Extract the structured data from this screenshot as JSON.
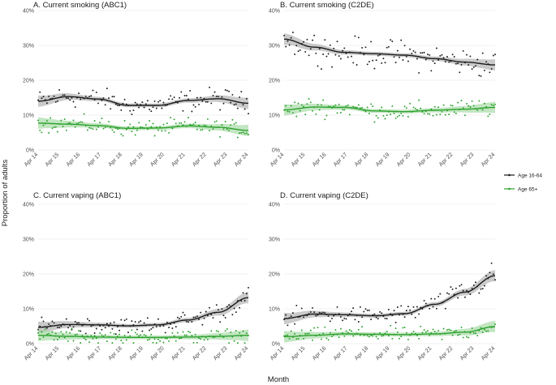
{
  "colors": {
    "age_16_64": "#1a1a1a",
    "age_65_plus": "#2ca02c",
    "ribbon_16_64": "#9e9e9e",
    "ribbon_65_plus": "#8fd18f",
    "grid": "#ececec"
  },
  "chart_data": {
    "type": "scatter",
    "xlabel": "Month",
    "ylabel": "Proportion of adults",
    "x_tick_labels": [
      "Apr 14",
      "Apr 15",
      "Apr 16",
      "Apr 17",
      "Apr 18",
      "Apr 19",
      "Apr 20",
      "Apr 21",
      "Apr 22",
      "Apr 23",
      "Apr 24"
    ],
    "y_tick_labels": [
      "0%",
      "10%",
      "20%",
      "30%",
      "40%"
    ],
    "ylim": [
      0,
      40
    ],
    "legend": {
      "position": "right",
      "entries": [
        "Age 16-64",
        "Age 65+"
      ]
    },
    "panels": [
      {
        "title": "A. Current smoking (ABC1)",
        "series": [
          {
            "name": "Age 16-64",
            "trend_knots": [
              14.0,
              15.3,
              14.6,
              12.8,
              12.8,
              14.2,
              14.7,
              13.4
            ]
          },
          {
            "name": "Age 65+",
            "trend_knots": [
              7.7,
              7.4,
              7.0,
              6.2,
              6.3,
              6.9,
              6.5,
              5.6
            ]
          }
        ]
      },
      {
        "title": "B. Current smoking (C2DE)",
        "series": [
          {
            "name": "Age 16-64",
            "trend_knots": [
              31.8,
              29.5,
              28.0,
              27.6,
              27.2,
              26.2,
              25.2,
              24.4
            ]
          },
          {
            "name": "Age 65+",
            "trend_knots": [
              11.5,
              12.3,
              12.2,
              11.2,
              11.0,
              11.4,
              11.7,
              12.2
            ]
          }
        ]
      },
      {
        "title": "C. Current vaping (ABC1)",
        "series": [
          {
            "name": "Age 16-64",
            "trend_knots": [
              4.7,
              5.5,
              5.4,
              5.1,
              5.4,
              6.8,
              9.0,
              13.2
            ]
          },
          {
            "name": "Age 65+",
            "trend_knots": [
              2.4,
              2.1,
              1.9,
              1.8,
              1.8,
              1.9,
              2.1,
              2.4
            ]
          }
        ]
      },
      {
        "title": "D. Current vaping (C2DE)",
        "series": [
          {
            "name": "Age 16-64",
            "trend_knots": [
              7.2,
              8.5,
              8.3,
              8.0,
              8.6,
              11.3,
              14.8,
              19.5
            ]
          },
          {
            "name": "Age 65+",
            "trend_knots": [
              2.0,
              2.4,
              2.8,
              2.7,
              2.6,
              2.8,
              3.3,
              4.9
            ]
          }
        ]
      }
    ]
  }
}
